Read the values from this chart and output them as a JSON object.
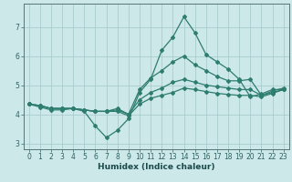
{
  "xlabel": "Humidex (Indice chaleur)",
  "bg_color": "#cce8e8",
  "grid_color": "#aacccc",
  "line_color": "#2e7d6e",
  "xlim": [
    -0.5,
    23.5
  ],
  "ylim": [
    2.8,
    7.8
  ],
  "xticks": [
    0,
    1,
    2,
    3,
    4,
    5,
    6,
    7,
    8,
    9,
    10,
    11,
    12,
    13,
    14,
    15,
    16,
    17,
    18,
    19,
    20,
    21,
    22,
    23
  ],
  "yticks": [
    3,
    4,
    5,
    6,
    7
  ],
  "series": [
    [
      4.35,
      4.25,
      4.15,
      4.15,
      4.2,
      4.1,
      3.6,
      3.2,
      3.45,
      3.85,
      4.75,
      5.2,
      6.2,
      6.65,
      7.35,
      6.8,
      6.05,
      5.8,
      5.55,
      5.2,
      4.6,
      4.7,
      4.85,
      4.85
    ],
    [
      4.35,
      4.3,
      4.2,
      4.2,
      4.2,
      4.15,
      4.1,
      4.1,
      4.2,
      4.0,
      4.85,
      5.25,
      5.5,
      5.8,
      6.0,
      5.7,
      5.5,
      5.3,
      5.15,
      5.15,
      5.2,
      4.65,
      4.8,
      4.9
    ],
    [
      4.35,
      4.3,
      4.2,
      4.2,
      4.2,
      4.15,
      4.1,
      4.1,
      4.15,
      4.0,
      4.5,
      4.75,
      4.9,
      5.1,
      5.2,
      5.1,
      5.0,
      4.95,
      4.9,
      4.85,
      4.85,
      4.65,
      4.75,
      4.85
    ],
    [
      4.35,
      4.3,
      4.2,
      4.2,
      4.2,
      4.15,
      4.1,
      4.1,
      4.1,
      3.95,
      4.35,
      4.55,
      4.65,
      4.75,
      4.9,
      4.85,
      4.78,
      4.72,
      4.68,
      4.65,
      4.65,
      4.6,
      4.72,
      4.85
    ]
  ],
  "marker_series": 0,
  "xlabel_fontsize": 6.5,
  "tick_fontsize": 5.5
}
